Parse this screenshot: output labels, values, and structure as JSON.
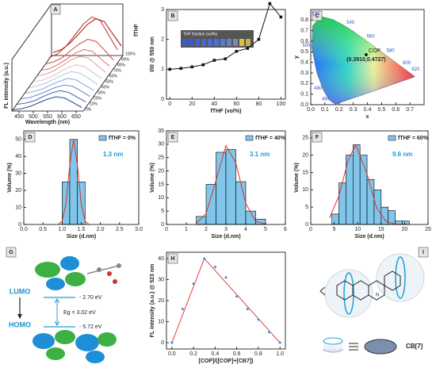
{
  "chart_data": [
    {
      "type": "waterfall",
      "panel": "A",
      "xlabel": "Wavelength (nm)",
      "ylabel": "FL intensity (a.u.)",
      "zlabel": "fTHF",
      "x": [
        430,
        460,
        490,
        520,
        550,
        580,
        610,
        640,
        670
      ],
      "xlim": [
        425,
        675
      ],
      "xticks": [
        450,
        500,
        550,
        600,
        650
      ],
      "ylim": [
        0,
        80
      ],
      "series": [
        {
          "name": "0%",
          "color": "#2b4c9b",
          "values": [
            2,
            4,
            8,
            14,
            20,
            24,
            22,
            14,
            6
          ]
        },
        {
          "name": "10%",
          "color": "#4a6fb5",
          "values": [
            2,
            4,
            8,
            15,
            21,
            25,
            22,
            14,
            6
          ]
        },
        {
          "name": "20%",
          "color": "#6a8fc9",
          "values": [
            2,
            4,
            9,
            15,
            21,
            25,
            23,
            15,
            6
          ]
        },
        {
          "name": "30%",
          "color": "#8fb0d9",
          "values": [
            2,
            5,
            9,
            16,
            22,
            27,
            24,
            15,
            7
          ]
        },
        {
          "name": "40%",
          "color": "#b3cde3",
          "values": [
            2,
            5,
            10,
            17,
            24,
            29,
            26,
            17,
            7
          ]
        },
        {
          "name": "50%",
          "color": "#e6c3c3",
          "values": [
            3,
            5,
            10,
            18,
            26,
            31,
            28,
            18,
            8
          ]
        },
        {
          "name": "60%",
          "color": "#e3a09a",
          "values": [
            3,
            6,
            12,
            21,
            30,
            36,
            33,
            21,
            9
          ]
        },
        {
          "name": "70%",
          "color": "#db7b72",
          "values": [
            3,
            6,
            13,
            22,
            32,
            38,
            35,
            22,
            10
          ]
        },
        {
          "name": "80%",
          "color": "#d1564d",
          "values": [
            4,
            8,
            15,
            27,
            38,
            46,
            42,
            27,
            11
          ]
        },
        {
          "name": "90%",
          "color": "#c73a36",
          "values": [
            6,
            12,
            25,
            43,
            62,
            74,
            68,
            43,
            19
          ]
        },
        {
          "name": "100%",
          "color": "#b22222",
          "values": [
            5,
            10,
            21,
            36,
            52,
            62,
            57,
            36,
            16
          ]
        }
      ]
    },
    {
      "type": "line",
      "panel": "B",
      "xlabel": "fTHF (vol%)",
      "ylabel": "I/I0 @ 550 nm",
      "inset": "THF fraction (vol%)",
      "color": "#111111",
      "x": [
        0,
        10,
        20,
        30,
        40,
        50,
        60,
        70,
        80,
        90,
        100
      ],
      "values": [
        1.0,
        1.03,
        1.08,
        1.15,
        1.3,
        1.35,
        1.6,
        1.7,
        2.0,
        3.2,
        2.75
      ],
      "xlim": [
        -3,
        104
      ],
      "xticks": [
        0,
        20,
        40,
        60,
        80,
        100
      ],
      "ylim": [
        0,
        3
      ],
      "yticks": [
        0,
        1,
        2,
        3
      ]
    },
    {
      "type": "cie",
      "panel": "C",
      "xlabel": "x",
      "ylabel": "y",
      "xlim": [
        0,
        0.8
      ],
      "ylim": [
        0,
        0.9
      ],
      "xticks": [
        {
          "value": 0,
          "label": "0.0"
        },
        0.1,
        0.2,
        0.3,
        0.4,
        0.5,
        0.6,
        0.7
      ],
      "yticks": [
        {
          "value": 0,
          "label": "0.0"
        },
        0.1,
        0.2,
        0.3,
        0.4,
        0.5,
        0.6,
        0.7,
        0.8
      ],
      "wavelengths": {
        "values": [
          460,
          480,
          500,
          520,
          540,
          560,
          580,
          600,
          620
        ],
        "x": [
          0.144,
          0.091,
          0.008,
          0.074,
          0.23,
          0.373,
          0.512,
          0.627,
          0.69
        ],
        "y": [
          0.03,
          0.133,
          0.538,
          0.834,
          0.754,
          0.624,
          0.487,
          0.372,
          0.31
        ]
      },
      "points": [
        {
          "name": "COP",
          "x": 0.391,
          "y": 0.4727,
          "label": "(0.3910,0.4727)"
        }
      ]
    },
    {
      "type": "histogram",
      "panel": "D",
      "xlabel": "Size (d.nm)",
      "ylabel": "Volume (%)",
      "legend": "fTHF = 0%",
      "annotation": "1.3 nm",
      "color": "#7fc6ea",
      "bins": [
        1.0,
        1.2,
        1.4,
        1.6
      ],
      "counts": [
        25,
        50,
        25
      ],
      "fit": {
        "x": [
          0.9,
          1.0,
          1.1,
          1.2,
          1.3,
          1.4,
          1.5,
          1.6,
          1.7
        ],
        "values": [
          0,
          2,
          12,
          35,
          50,
          35,
          12,
          2,
          0
        ]
      },
      "xlim": [
        0,
        3
      ],
      "xticks": [
        {
          "value": 0,
          "label": "0.0"
        },
        0.5,
        {
          "value": 1,
          "label": "1.0"
        },
        1.5,
        {
          "value": 2,
          "label": "2.0"
        },
        2.5,
        {
          "value": 3,
          "label": "3.0"
        }
      ],
      "ylim": [
        0,
        55
      ],
      "yticks": [
        0,
        10,
        20,
        30,
        40,
        50
      ]
    },
    {
      "type": "histogram",
      "panel": "E",
      "xlabel": "Size (d.nm)",
      "ylabel": "Volume (%)",
      "legend": "fTHF = 40%",
      "annotation": "3.1 nm",
      "color": "#7fc6ea",
      "bins": [
        1.5,
        2,
        2.5,
        3,
        3.5,
        4,
        4.5,
        5
      ],
      "counts": [
        3,
        15,
        27,
        28,
        16,
        5,
        2
      ],
      "fit": {
        "x": [
          1.5,
          2,
          2.5,
          3,
          3.5,
          4,
          4.5,
          5
        ],
        "values": [
          0.4,
          4.1,
          16.5,
          29.5,
          23,
          7.9,
          1.2,
          0.1
        ]
      },
      "xlim": [
        0,
        6
      ],
      "xticks": [
        0,
        1,
        2,
        3,
        4,
        5,
        6
      ],
      "ylim": [
        0,
        35
      ],
      "yticks": [
        0,
        5,
        10,
        15,
        20,
        25,
        30,
        35
      ]
    },
    {
      "type": "histogram",
      "panel": "F",
      "xlabel": "Size (d.nm)",
      "ylabel": "Volume (%)",
      "legend": "fTHF = 60%",
      "annotation": "9.6 nm",
      "color": "#7fc6ea",
      "bins": [
        4.5,
        6,
        7.5,
        9,
        10.5,
        12,
        13.5,
        15,
        16.5,
        18,
        19.5,
        21
      ],
      "counts": [
        3,
        12,
        20,
        23,
        20,
        13,
        10,
        5,
        4,
        1,
        1
      ],
      "fit": {
        "x": [
          4,
          6,
          8,
          9.6,
          12,
          14,
          16,
          18,
          20
        ],
        "values": [
          1.9,
          8.2,
          18.7,
          23,
          14.5,
          4.9,
          0.9,
          0.1,
          0
        ]
      },
      "xlim": [
        0,
        25
      ],
      "xticks": [
        0,
        5,
        10,
        15,
        20,
        25
      ],
      "ylim": [
        0,
        27
      ],
      "yticks": [
        0,
        5,
        10,
        15,
        20,
        25
      ]
    },
    {
      "type": "scatter",
      "panel": "H",
      "xlabel": "[COP]/([COP]+[CB7])",
      "ylabel": "FL intensity (a.u.) @ 523 nm",
      "color": "#4a90d9",
      "fit_color": "#e0403a",
      "x": [
        0,
        0.1,
        0.2,
        0.3,
        0.4,
        0.5,
        0.6,
        0.7,
        0.8,
        0.9,
        1.0
      ],
      "values": [
        0,
        16,
        28,
        40,
        36,
        31,
        22,
        16,
        11,
        5,
        0
      ],
      "fit": {
        "x": [
          0,
          0.3,
          1.0
        ],
        "values": [
          0,
          40,
          0
        ]
      },
      "xlim": [
        -0.05,
        1.05
      ],
      "xticks": [
        {
          "value": 0,
          "label": "0.0"
        },
        0.2,
        0.4,
        0.6,
        0.8,
        {
          "value": 1,
          "label": "1.0"
        }
      ],
      "ylim": [
        -3,
        43
      ],
      "yticks": [
        0,
        10,
        20,
        30,
        40
      ]
    }
  ],
  "orbital_diagram": {
    "panel": "G",
    "lumo": "LUMO",
    "homo": "HOMO",
    "lumo_energy": "- 2.70 eV",
    "gap": "Eg = 3.02 eV",
    "homo_energy": "- 5.72 eV"
  },
  "structure": {
    "panel": "I",
    "host": "CB[7]"
  }
}
